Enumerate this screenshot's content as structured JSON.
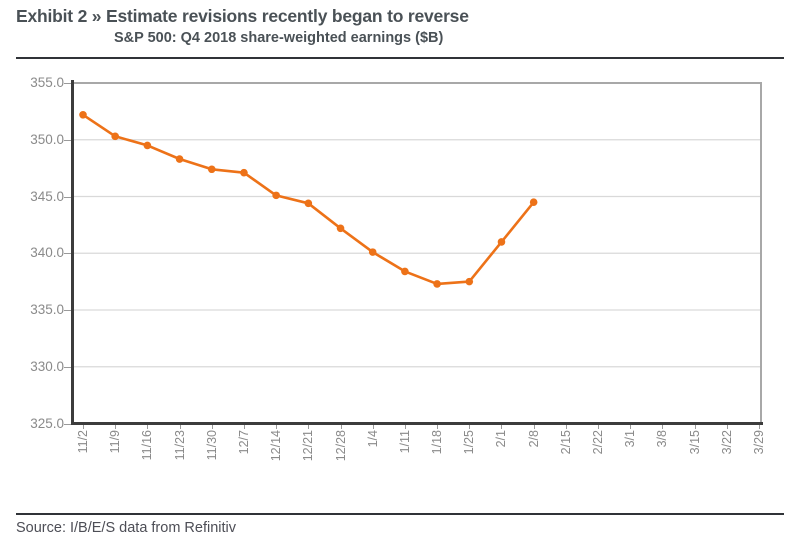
{
  "header": {
    "title": "Exhibit 2 » Estimate revisions recently began to reverse",
    "subtitle": "S&P 500: Q4 2018 share-weighted earnings ($B)"
  },
  "footer": {
    "source": "Source: I/B/E/S data from Refinitiv"
  },
  "colors": {
    "accent_orange": "#ED7218",
    "gridline": "#D9D9D9",
    "axis_dark": "#3C3C3C",
    "frame_gray": "#A8A8A8",
    "tick_label": "#8A8A8A",
    "heading_text": "#4A5156",
    "rule": "#303338"
  },
  "chart_data": {
    "type": "line",
    "title": "Estimate revisions recently began to reverse",
    "subtitle": "S&P 500: Q4 2018 share-weighted earnings ($B)",
    "categories": [
      "11/2",
      "11/9",
      "11/16",
      "11/23",
      "11/30",
      "12/7",
      "12/14",
      "12/21",
      "12/28",
      "1/4",
      "1/11",
      "1/18",
      "1/25",
      "2/1",
      "2/8",
      "2/15",
      "2/22",
      "3/1",
      "3/8",
      "3/15",
      "3/22",
      "3/29"
    ],
    "series": [
      {
        "name": "Q4 2018 share-weighted earnings ($B)",
        "color": "#ED7218",
        "values": [
          352.2,
          350.3,
          349.5,
          348.3,
          347.4,
          347.1,
          345.1,
          344.4,
          342.2,
          340.1,
          338.4,
          337.3,
          337.5,
          341.0,
          344.5,
          null,
          null,
          null,
          null,
          null,
          null,
          null
        ]
      }
    ],
    "ylim": [
      325.0,
      355.0
    ],
    "ytick_interval": 5,
    "ytick_labels": [
      "355.0",
      "350.0",
      "345.0",
      "340.0",
      "335.0",
      "330.0",
      "325.0"
    ],
    "grid": "horizontal",
    "legend_position": "none",
    "marker": "circle",
    "xlabel": "",
    "ylabel": ""
  }
}
